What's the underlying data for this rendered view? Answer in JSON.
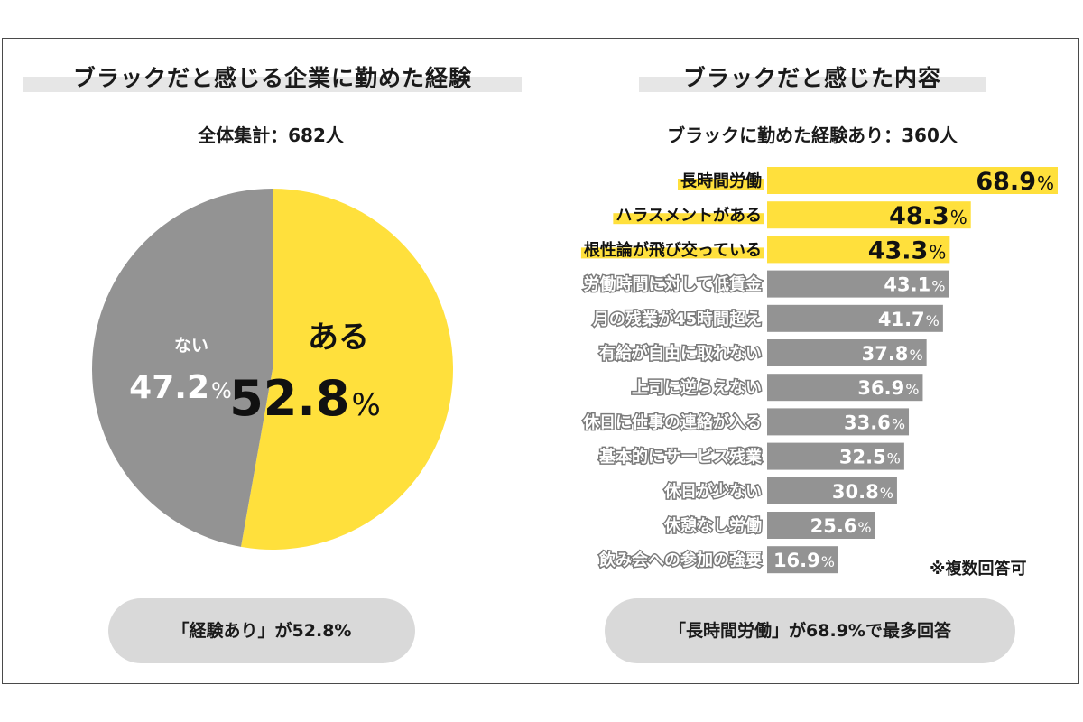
{
  "left": {
    "title": "ブラックだと感じる企業に勤めた経験",
    "subtitle": "全体集計：682人",
    "summary": "「経験あり」が52.8%"
  },
  "right": {
    "title": "ブラックだと感じた内容",
    "subtitle": "ブラックに勤めた経験あり：360人",
    "note": "※複数回答可",
    "summary": "「長時間労働」が68.9%で最多回答"
  },
  "colors": {
    "yellow": "#FFE03C",
    "gray": "#939393"
  },
  "chart_data": [
    {
      "type": "pie",
      "slices": [
        {
          "label": "ある",
          "value": 52.8,
          "display": "52.8",
          "unit": "%",
          "color": "#FFE03C"
        },
        {
          "label": "ない",
          "value": 47.2,
          "display": "47.2",
          "unit": "%",
          "color": "#939393"
        }
      ]
    },
    {
      "type": "bar",
      "orientation": "horizontal",
      "unit": "%",
      "highlight_top": 3,
      "categories": [
        "長時間労働",
        "ハラスメントがある",
        "根性論が飛び交っている",
        "労働時間に対して低賃金",
        "月の残業が45時間超え",
        "有給が自由に取れない",
        "上司に逆らえない",
        "休日に仕事の連絡が入る",
        "基本的にサービス残業",
        "休日が少ない",
        "休憩なし労働",
        "飲み会への参加の強要"
      ],
      "values": [
        68.9,
        48.3,
        43.3,
        43.1,
        41.7,
        37.8,
        36.9,
        33.6,
        32.5,
        30.8,
        25.6,
        16.9
      ],
      "value_labels": [
        "68.9",
        "48.3",
        "43.3",
        "43.1",
        "41.7",
        "37.8",
        "36.9",
        "33.6",
        "32.5",
        "30.8",
        "25.6",
        "16.9"
      ]
    }
  ]
}
